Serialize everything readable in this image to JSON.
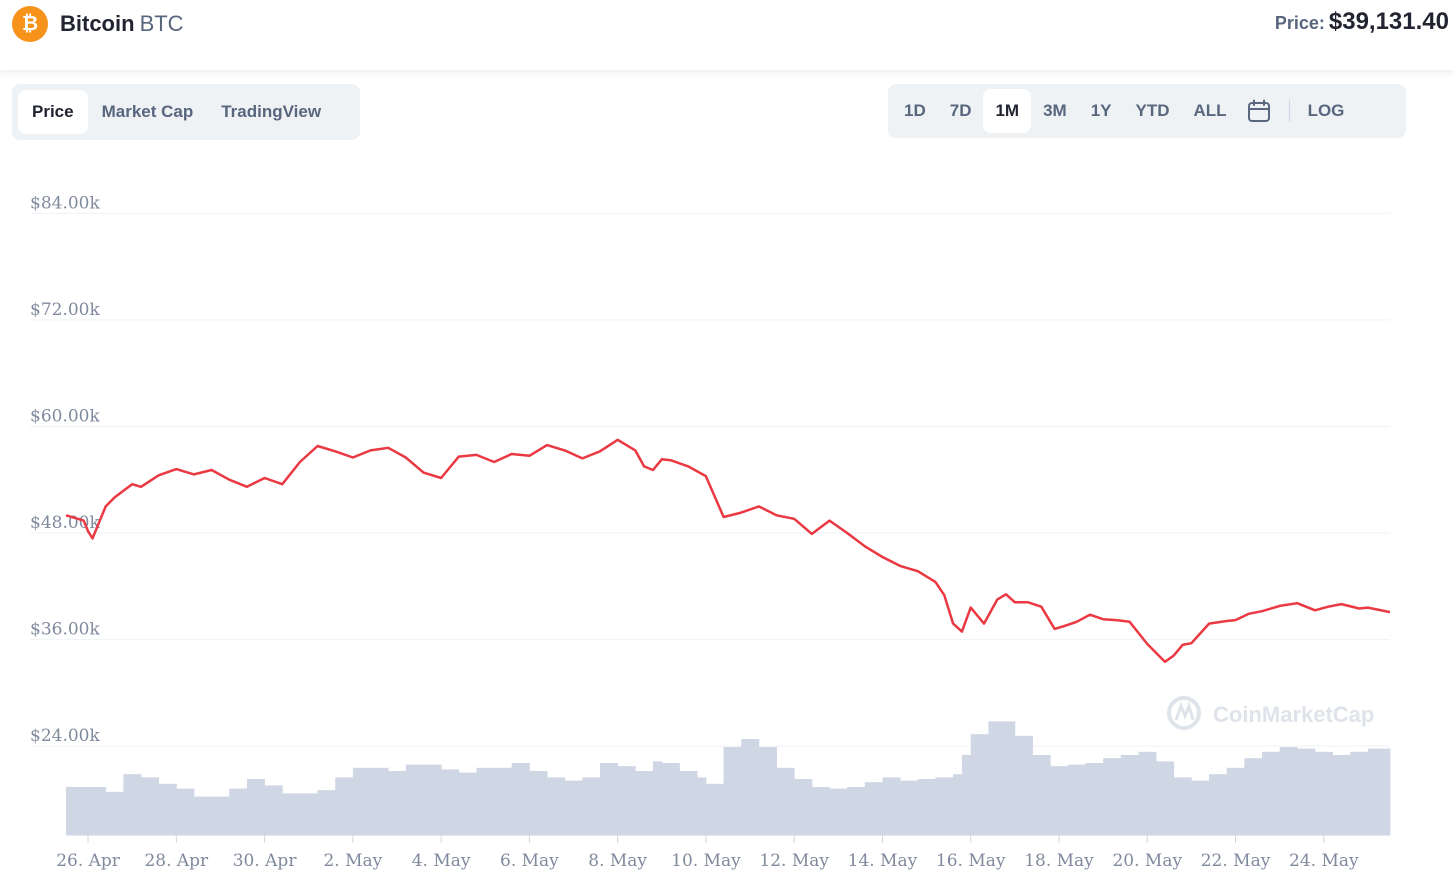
{
  "header": {
    "coin_name": "Bitcoin",
    "coin_symbol": "BTC",
    "logo_glyph": "₿",
    "logo_color": "#f7931a",
    "price_label": "Price:",
    "price_value": "$39,131.40"
  },
  "tabs": [
    {
      "label": "Price",
      "active": true
    },
    {
      "label": "Market Cap",
      "active": false
    },
    {
      "label": "TradingView",
      "active": false
    }
  ],
  "ranges": [
    {
      "label": "1D",
      "active": false
    },
    {
      "label": "7D",
      "active": false
    },
    {
      "label": "1M",
      "active": true
    },
    {
      "label": "3M",
      "active": false
    },
    {
      "label": "1Y",
      "active": false
    },
    {
      "label": "YTD",
      "active": false
    },
    {
      "label": "ALL",
      "active": false
    }
  ],
  "calendar_icon": "calendar-icon",
  "log_label": "LOG",
  "watermark": "CoinMarketCap",
  "chart_data": {
    "type": "line",
    "line_color": "#ea3943",
    "volume_color": "#cfd6e4",
    "grid": true,
    "ylim": [
      14000,
      90000
    ],
    "yticks": [
      24000,
      36000,
      48000,
      60000,
      72000,
      84000
    ],
    "ytick_labels": [
      "$24.00k",
      "$36.00k",
      "$48.00k",
      "$60.00k",
      "$72.00k",
      "$84.00k"
    ],
    "xlim": [
      -0.5,
      29.5
    ],
    "xticks": [
      0,
      2,
      4,
      6,
      8,
      10,
      12,
      14,
      16,
      18,
      20,
      22,
      24,
      26,
      28
    ],
    "xtick_labels": [
      "26. Apr",
      "28. Apr",
      "30. Apr",
      "2. May",
      "4. May",
      "6. May",
      "8. May",
      "10. May",
      "12. May",
      "14. May",
      "16. May",
      "18. May",
      "20. May",
      "22. May",
      "24. May"
    ],
    "series": [
      {
        "x": [
          -0.5,
          -0.1,
          0.0,
          0.1,
          0.4,
          0.6,
          1.0,
          1.2,
          1.6,
          2.0,
          2.4,
          2.8,
          3.2,
          3.6,
          4.0,
          4.4,
          4.8,
          5.2,
          5.6,
          6.0,
          6.4,
          6.8,
          7.2,
          7.6,
          8.0,
          8.4,
          8.8,
          9.2,
          9.6,
          10.0,
          10.4,
          10.8,
          11.2,
          11.6,
          12.0,
          12.4,
          12.6,
          12.8,
          13.0,
          13.2,
          13.6,
          14.0,
          14.4,
          14.8,
          15.2,
          15.6,
          16.0,
          16.4,
          16.8,
          17.2,
          17.6,
          18.0,
          18.4,
          18.8,
          19.2,
          19.4,
          19.6,
          19.8,
          20.0,
          20.3,
          20.6,
          20.8,
          21.0,
          21.3,
          21.6,
          21.9,
          22.1,
          22.4,
          22.7,
          23.0,
          23.3,
          23.6,
          24.0,
          24.4,
          24.6,
          24.8,
          25.0,
          25.4,
          25.8,
          26.0,
          26.3,
          26.6,
          27.0,
          27.4,
          27.8,
          28.1,
          28.4,
          28.8,
          29.0,
          29.5
        ],
        "y": [
          50000,
          49400,
          48200,
          47400,
          51000,
          52000,
          53500,
          53200,
          54500,
          55200,
          54600,
          55100,
          54000,
          53200,
          54200,
          53500,
          56000,
          57800,
          57200,
          56500,
          57300,
          57600,
          56500,
          54800,
          54200,
          56600,
          56800,
          56000,
          56900,
          56700,
          57900,
          57300,
          56400,
          57200,
          58500,
          57300,
          55500,
          55100,
          56300,
          56200,
          55500,
          54400,
          49800,
          50300,
          51000,
          50000,
          49600,
          47900,
          49400,
          48000,
          46500,
          45300,
          44300,
          43700,
          42500,
          41000,
          37800,
          36900,
          39600,
          37800,
          40500,
          41100,
          40200,
          40200,
          39700,
          37200,
          37500,
          38000,
          38800,
          38300,
          38200,
          38000,
          35500,
          33500,
          34200,
          35400,
          35600,
          37800,
          38100,
          38200,
          38900,
          39200,
          39800,
          40100,
          39300,
          39700,
          40000,
          39500,
          39600,
          39100
        ]
      }
    ],
    "volume": {
      "x": [
        -0.5,
        0.4,
        0.8,
        1.2,
        1.6,
        2.0,
        2.4,
        2.8,
        3.2,
        3.6,
        4.0,
        4.4,
        4.8,
        5.2,
        5.6,
        6.0,
        6.4,
        6.8,
        7.2,
        7.6,
        8.0,
        8.4,
        8.8,
        9.2,
        9.6,
        10.0,
        10.4,
        10.8,
        11.2,
        11.6,
        12.0,
        12.4,
        12.8,
        13.0,
        13.4,
        13.8,
        14.0,
        14.4,
        14.8,
        15.2,
        15.6,
        16.0,
        16.4,
        16.8,
        17.2,
        17.6,
        18.0,
        18.4,
        18.8,
        19.2,
        19.6,
        19.8,
        20.0,
        20.4,
        20.8,
        21.0,
        21.4,
        21.8,
        22.2,
        22.6,
        23.0,
        23.4,
        23.8,
        24.2,
        24.6,
        25.0,
        25.4,
        25.8,
        26.2,
        26.6,
        27.0,
        27.4,
        27.8,
        28.2,
        28.6,
        29.0,
        29.5
      ],
      "y": [
        0.3,
        0.27,
        0.38,
        0.36,
        0.32,
        0.29,
        0.24,
        0.24,
        0.29,
        0.35,
        0.31,
        0.26,
        0.26,
        0.28,
        0.36,
        0.42,
        0.42,
        0.4,
        0.44,
        0.44,
        0.41,
        0.39,
        0.42,
        0.42,
        0.45,
        0.4,
        0.36,
        0.34,
        0.36,
        0.45,
        0.43,
        0.4,
        0.46,
        0.45,
        0.4,
        0.36,
        0.32,
        0.55,
        0.6,
        0.55,
        0.42,
        0.35,
        0.3,
        0.29,
        0.3,
        0.33,
        0.36,
        0.34,
        0.35,
        0.36,
        0.38,
        0.5,
        0.63,
        0.71,
        0.71,
        0.62,
        0.5,
        0.43,
        0.44,
        0.45,
        0.48,
        0.5,
        0.52,
        0.46,
        0.36,
        0.34,
        0.38,
        0.42,
        0.48,
        0.52,
        0.55,
        0.54,
        0.52,
        0.5,
        0.52,
        0.54,
        0.46
      ]
    }
  }
}
